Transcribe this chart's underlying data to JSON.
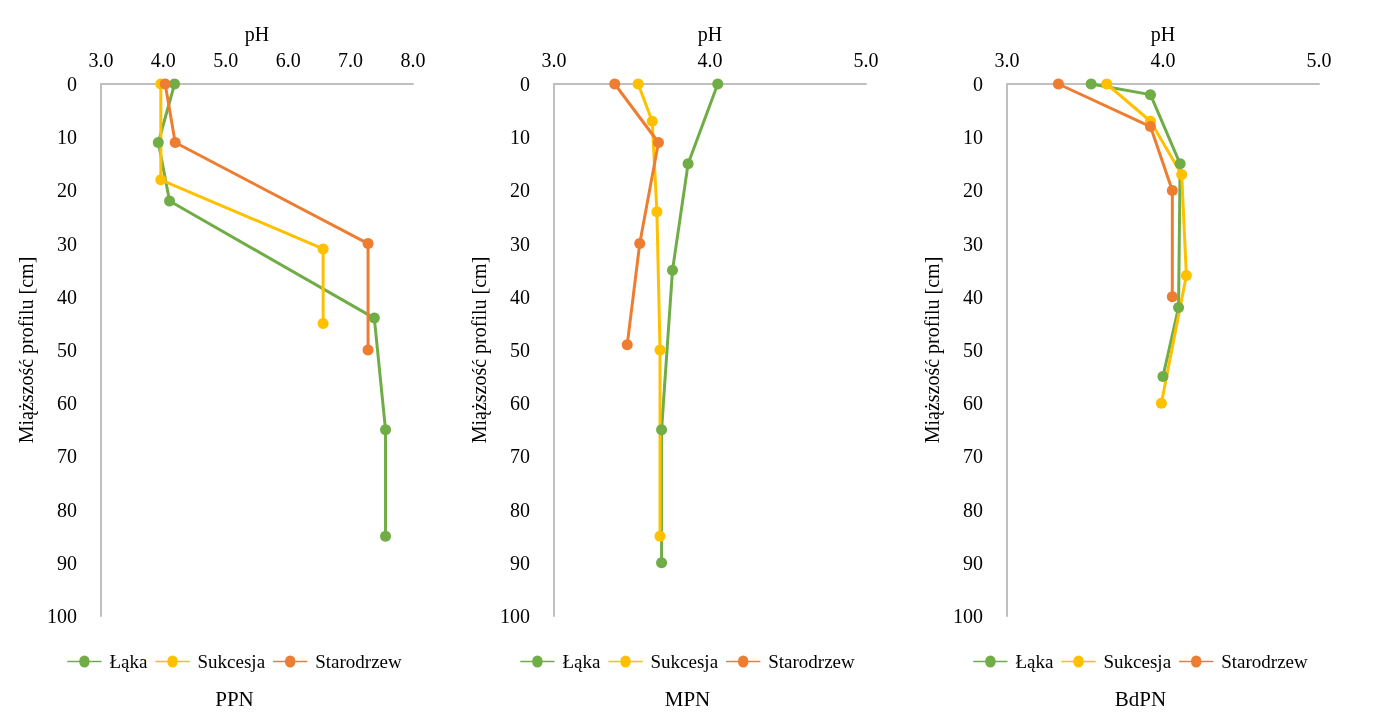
{
  "chart_data": [
    {
      "type": "line",
      "title": "PPN",
      "xlabel": "pH",
      "ylabel": "Miąższość profilu [cm]",
      "xlim": [
        3,
        8
      ],
      "xticks": [
        {
          "value": 3,
          "label": "3.0"
        },
        {
          "value": 4,
          "label": "4.0"
        },
        {
          "value": 5,
          "label": "5.0"
        },
        {
          "value": 6,
          "label": "6.0"
        },
        {
          "value": 7,
          "label": "7.0"
        },
        {
          "value": 8,
          "label": "8.0"
        }
      ],
      "ylim": [
        100,
        0
      ],
      "yticks": [
        0,
        10,
        20,
        30,
        40,
        50,
        60,
        70,
        80,
        90,
        100
      ],
      "legend": "bottom",
      "marker": "circle",
      "series": [
        {
          "name": "Łąka",
          "color": "#70ad47",
          "x": [
            4.18,
            3.92,
            4.1,
            7.38,
            7.56,
            7.56
          ],
          "values": [
            0,
            11,
            22,
            44,
            65,
            85
          ]
        },
        {
          "name": "Sukcesja",
          "color": "#ffc000",
          "x": [
            3.96,
            3.96,
            6.56,
            6.56
          ],
          "values": [
            0,
            18,
            31,
            45
          ]
        },
        {
          "name": "Starodrzew",
          "color": "#ed7d31",
          "x": [
            4.03,
            4.19,
            7.28,
            7.28
          ],
          "values": [
            0,
            11,
            30,
            50
          ]
        }
      ]
    },
    {
      "type": "line",
      "title": "MPN",
      "xlabel": "pH",
      "ylabel": "Miąższość profilu [cm]",
      "xlim": [
        3,
        5
      ],
      "xticks": [
        {
          "value": 3,
          "label": "3.0"
        },
        {
          "value": 4,
          "label": "4.0"
        },
        {
          "value": 5,
          "label": "5.0"
        }
      ],
      "ylim": [
        100,
        0
      ],
      "yticks": [
        0,
        10,
        20,
        30,
        40,
        50,
        60,
        70,
        80,
        90,
        100
      ],
      "legend": "bottom",
      "marker": "circle",
      "series": [
        {
          "name": "Łąka",
          "color": "#70ad47",
          "x": [
            4.05,
            3.86,
            3.76,
            3.69,
            3.69
          ],
          "values": [
            0,
            15,
            35,
            65,
            90
          ]
        },
        {
          "name": "Sukcesja",
          "color": "#ffc000",
          "x": [
            3.54,
            3.63,
            3.66,
            3.68,
            3.68
          ],
          "values": [
            0,
            7,
            24,
            50,
            85
          ]
        },
        {
          "name": "Starodrzew",
          "color": "#ed7d31",
          "x": [
            3.39,
            3.67,
            3.55,
            3.47
          ],
          "values": [
            0,
            11,
            30,
            49
          ]
        }
      ]
    },
    {
      "type": "line",
      "title": "BdPN",
      "xlabel": "pH",
      "ylabel": "Miąższość profilu [cm]",
      "xlim": [
        3,
        5
      ],
      "xticks": [
        {
          "value": 3,
          "label": "3.0"
        },
        {
          "value": 4,
          "label": "4.0"
        },
        {
          "value": 5,
          "label": "5.0"
        }
      ],
      "ylim": [
        100,
        0
      ],
      "yticks": [
        0,
        10,
        20,
        30,
        40,
        50,
        60,
        70,
        80,
        90,
        100
      ],
      "legend": "bottom",
      "marker": "circle",
      "series": [
        {
          "name": "Łąka",
          "color": "#70ad47",
          "x": [
            3.54,
            3.92,
            4.11,
            4.1,
            4.0
          ],
          "values": [
            0,
            2,
            15,
            42,
            55
          ]
        },
        {
          "name": "Sukcesja",
          "color": "#ffc000",
          "x": [
            3.64,
            3.92,
            4.12,
            4.15,
            3.99
          ],
          "values": [
            0,
            7,
            17,
            36,
            60
          ]
        },
        {
          "name": "Starodrzew",
          "color": "#ed7d31",
          "x": [
            3.33,
            3.92,
            4.06,
            4.06
          ],
          "values": [
            0,
            8,
            20,
            40
          ]
        }
      ]
    }
  ]
}
